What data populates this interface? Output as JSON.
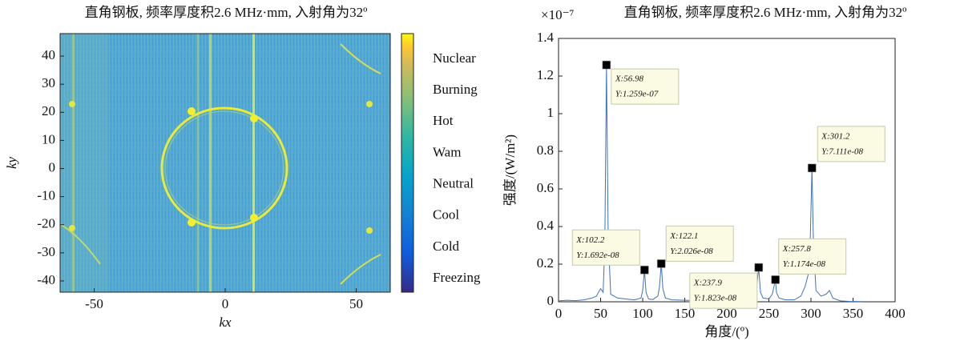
{
  "chart_data": [
    {
      "type": "heatmap",
      "title": "直角钢板, 频率厚度积2.6 MHz·mm, 入射角为32º",
      "x_label": "kx",
      "y_label": "ky",
      "xlim": [
        -63,
        63
      ],
      "ylim": [
        -44,
        48
      ],
      "xticks": [
        -50,
        0,
        50
      ],
      "yticks": [
        -40,
        -30,
        -20,
        -10,
        0,
        10,
        20,
        30,
        40
      ],
      "colorbar_labels": [
        "Nuclear",
        "Burning",
        "Hot",
        "Wam",
        "Neutral",
        "Cool",
        "Cold",
        "Freezing"
      ]
    },
    {
      "type": "line",
      "title": "直角钢板, 频率厚度积2.6 MHz·mm, 入射角为32º",
      "x_label": "角度/(º)",
      "y_label": "强度/(W/m²)",
      "y_exponent_label": "×10⁻⁷",
      "xlim": [
        0,
        400
      ],
      "ylim": [
        0,
        1.4
      ],
      "xticks": [
        0,
        50,
        100,
        150,
        200,
        250,
        300,
        350,
        400
      ],
      "yticks": [
        0,
        0.2,
        0.4,
        0.6,
        0.8,
        1,
        1.2,
        1.4
      ],
      "color": "#3f72b8",
      "x": [
        0,
        10,
        20,
        30,
        40,
        45,
        50,
        53,
        55,
        56.98,
        59,
        62,
        70,
        80,
        90,
        98,
        100,
        102.2,
        104,
        107,
        112,
        118,
        120,
        122.1,
        124,
        127,
        135,
        150,
        170,
        190,
        210,
        225,
        232,
        235,
        237.9,
        240,
        243,
        250,
        254,
        256,
        257.8,
        259,
        262,
        270,
        280,
        288,
        293,
        297,
        299,
        301.2,
        303,
        306,
        312,
        318,
        322,
        326,
        335,
        345,
        360
      ],
      "values": [
        0.005,
        0.008,
        0.006,
        0.01,
        0.02,
        0.03,
        0.07,
        0.05,
        0.3,
        1.259,
        0.35,
        0.04,
        0.02,
        0.015,
        0.01,
        0.02,
        0.06,
        0.169,
        0.05,
        0.015,
        0.012,
        0.03,
        0.08,
        0.203,
        0.07,
        0.02,
        0.01,
        0.008,
        0.006,
        0.005,
        0.006,
        0.01,
        0.03,
        0.06,
        0.182,
        0.05,
        0.02,
        0.015,
        0.04,
        0.08,
        0.117,
        0.05,
        0.02,
        0.01,
        0.01,
        0.03,
        0.08,
        0.15,
        0.3,
        0.711,
        0.3,
        0.06,
        0.03,
        0.04,
        0.06,
        0.02,
        0.005,
        0.002,
        0.001
      ],
      "datatips": [
        {
          "x": 56.98,
          "y": 1.259,
          "x_label": "X:56.98",
          "y_label": "Y:1.259e-07"
        },
        {
          "x": 102.2,
          "y": 0.1692,
          "x_label": "X:102.2",
          "y_label": "Y:1.692e-08"
        },
        {
          "x": 122.1,
          "y": 0.2026,
          "x_label": "X:122.1",
          "y_label": "Y:2.026e-08"
        },
        {
          "x": 237.9,
          "y": 0.1823,
          "x_label": "X:237.9",
          "y_label": "Y:1.823e-08"
        },
        {
          "x": 257.8,
          "y": 0.1174,
          "x_label": "X:257.8",
          "y_label": "Y:1.174e-08"
        },
        {
          "x": 301.2,
          "y": 0.7111,
          "x_label": "X:301.2",
          "y_label": "Y:7.111e-08"
        }
      ]
    }
  ]
}
